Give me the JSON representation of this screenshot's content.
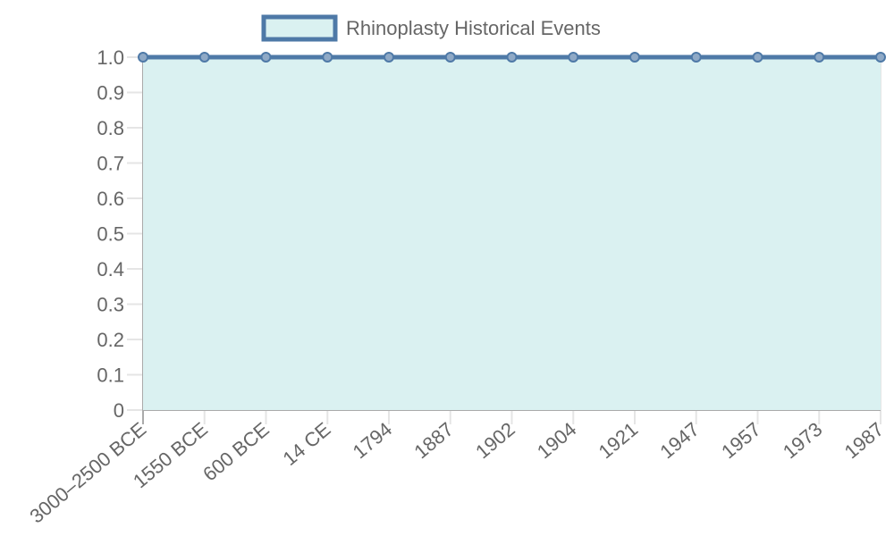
{
  "chart_data": {
    "type": "area",
    "title": "",
    "xlabel": "",
    "ylabel": "",
    "legend": {
      "position": "top",
      "entries": [
        "Rhinoplasty Historical Events"
      ]
    },
    "grid": true,
    "ylim": [
      0,
      1.0
    ],
    "yticks": [
      "0",
      "0.1",
      "0.2",
      "0.3",
      "0.4",
      "0.5",
      "0.6",
      "0.7",
      "0.8",
      "0.9",
      "1.0"
    ],
    "categories": [
      "3000–2500 BCE",
      "1550 BCE",
      "600 BCE",
      "14 CE",
      "1794",
      "1887",
      "1902",
      "1904",
      "1921",
      "1947",
      "1957",
      "1973",
      "1987"
    ],
    "series": [
      {
        "name": "Rhinoplasty Historical Events",
        "values": [
          1,
          1,
          1,
          1,
          1,
          1,
          1,
          1,
          1,
          1,
          1,
          1,
          1
        ],
        "line_color": "#4e79a7",
        "fill_color": "#daf1f1"
      }
    ]
  }
}
